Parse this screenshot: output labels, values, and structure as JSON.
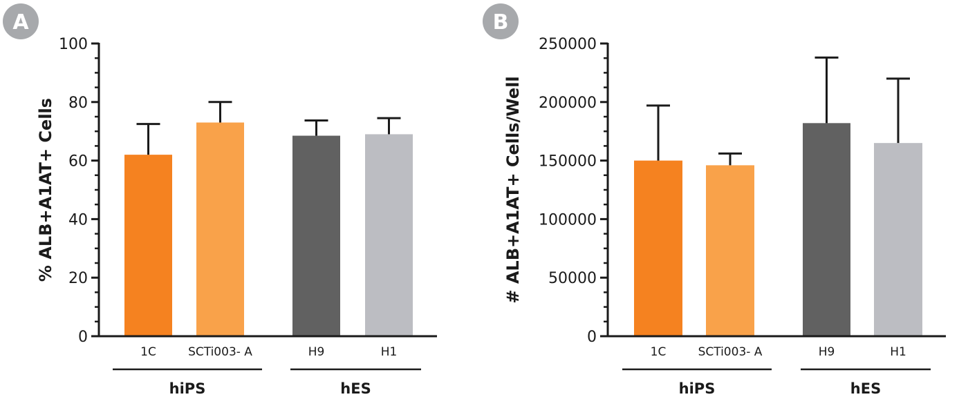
{
  "colors": {
    "badge": "#a7a9ac",
    "1C": "#f58220",
    "SCTi003- A": "#f9a24a",
    "H9": "#616161",
    "H1": "#bcbdc2"
  },
  "chart_data": [
    {
      "type": "bar",
      "panel": "A",
      "ylabel": "% ALB+A1AT+  Cells",
      "ylim": [
        0,
        100
      ],
      "yticks": [
        "0",
        "20",
        "40",
        "60",
        "80",
        "100"
      ],
      "categories": [
        "1C",
        "SCTi003- A",
        "H9",
        "H1"
      ],
      "values": [
        62,
        73,
        68.5,
        69
      ],
      "errors": [
        10.5,
        7,
        5.2,
        5.5
      ],
      "groups": [
        {
          "label": "hiPS",
          "members": [
            "1C",
            "SCTi003- A"
          ]
        },
        {
          "label": "hES",
          "members": [
            "H9",
            "H1"
          ]
        }
      ],
      "grid": false,
      "legend": "none"
    },
    {
      "type": "bar",
      "panel": "B",
      "ylabel": "# ALB+A1AT+  Cells/Well",
      "ylim": [
        0,
        250000
      ],
      "yticks": [
        "0",
        "50000",
        "100000",
        "150000",
        "200000",
        "250000"
      ],
      "categories": [
        "1C",
        "SCTi003- A",
        "H9",
        "H1"
      ],
      "values": [
        150000,
        146000,
        182000,
        165000
      ],
      "errors": [
        47000,
        10000,
        56000,
        55000
      ],
      "groups": [
        {
          "label": "hiPS",
          "members": [
            "1C",
            "SCTi003- A"
          ]
        },
        {
          "label": "hES",
          "members": [
            "H9",
            "H1"
          ]
        }
      ],
      "grid": false,
      "legend": "none"
    }
  ]
}
